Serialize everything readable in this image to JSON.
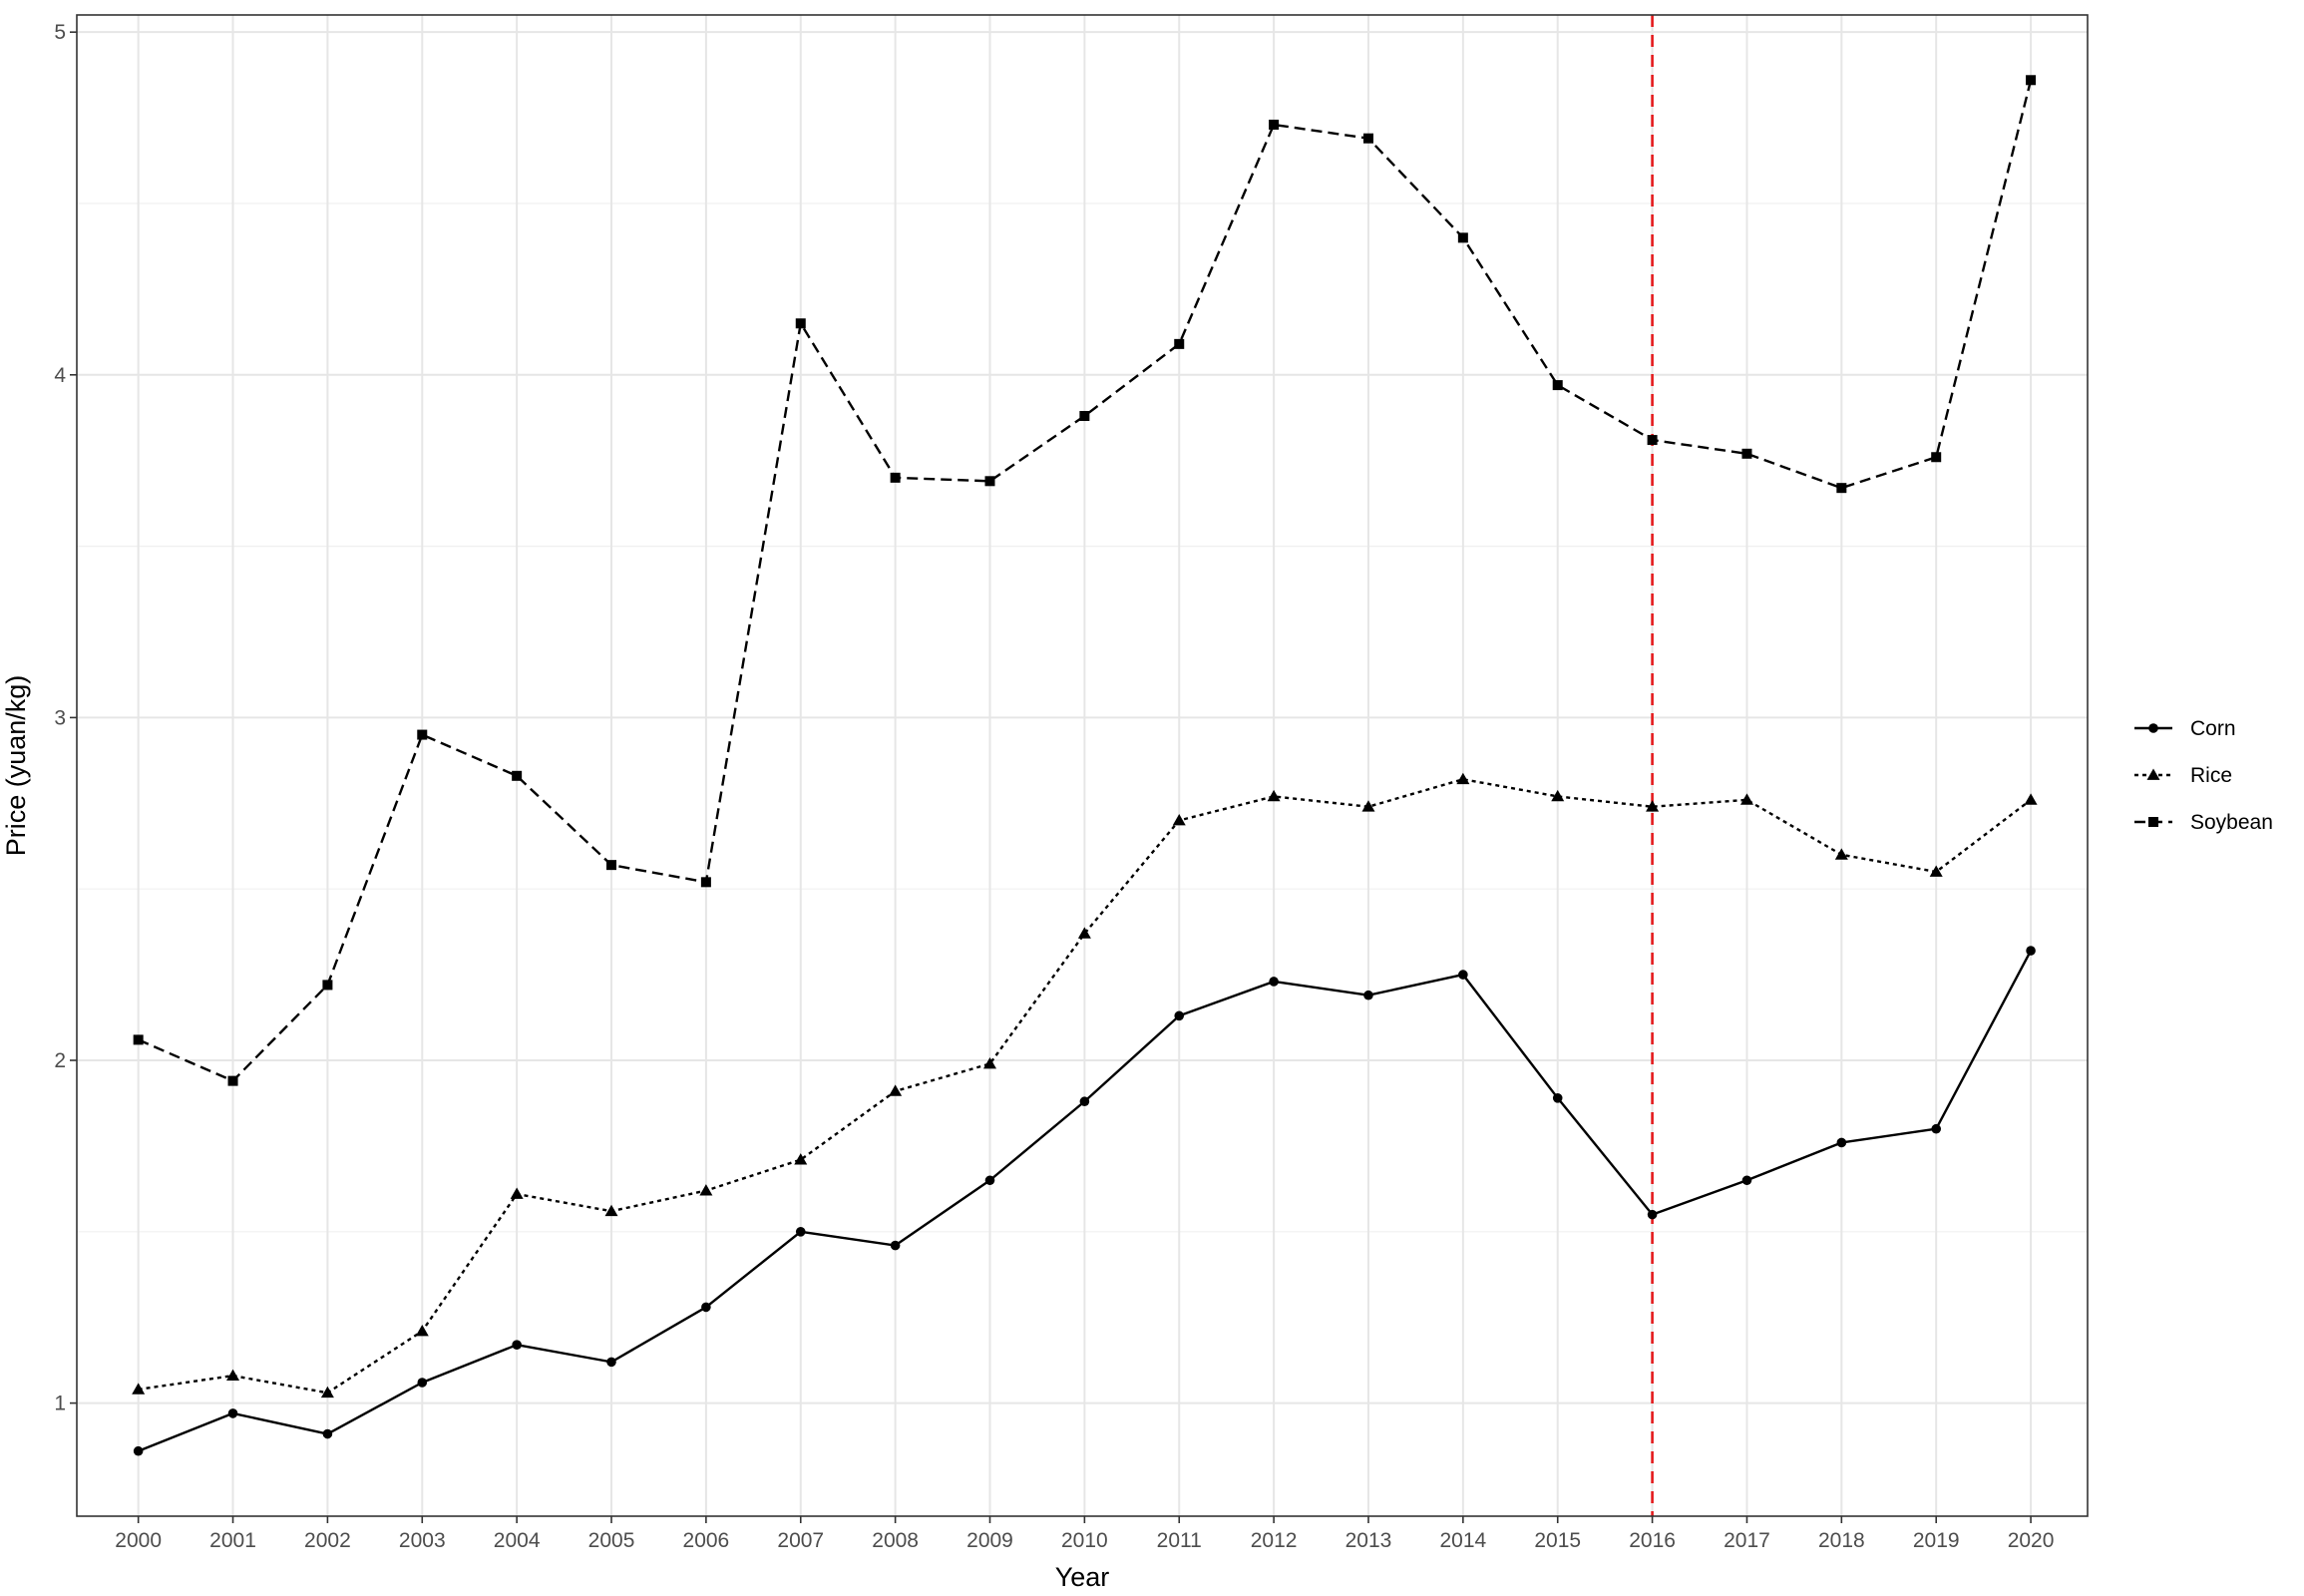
{
  "chart_data": {
    "type": "line",
    "title": "",
    "xlabel": "Year",
    "ylabel": "Price (yuan/kg)",
    "x": [
      2000,
      2001,
      2002,
      2003,
      2004,
      2005,
      2006,
      2007,
      2008,
      2009,
      2010,
      2011,
      2012,
      2013,
      2014,
      2015,
      2016,
      2017,
      2018,
      2019,
      2020
    ],
    "x_tick_labels": [
      "2000",
      "2001",
      "2002",
      "2003",
      "2004",
      "2005",
      "2006",
      "2007",
      "2008",
      "2009",
      "2010",
      "2011",
      "2012",
      "2013",
      "2014",
      "2015",
      "2016",
      "2017",
      "2018",
      "2019",
      "2020"
    ],
    "xlim": [
      1999.35,
      2020.6
    ],
    "ylim": [
      0.67,
      5.05
    ],
    "y_ticks": [
      1,
      2,
      3,
      4,
      5
    ],
    "y_tick_labels": [
      "1",
      "2",
      "3",
      "4",
      "5"
    ],
    "grid": true,
    "legend_position": "right",
    "series": [
      {
        "name": "Corn",
        "line_style": "solid",
        "marker": "circle",
        "color": "#000000",
        "values": [
          0.86,
          0.97,
          0.91,
          1.06,
          1.17,
          1.12,
          1.28,
          1.5,
          1.46,
          1.65,
          1.88,
          2.13,
          2.23,
          2.19,
          2.25,
          1.89,
          1.55,
          1.65,
          1.76,
          1.8,
          2.32
        ]
      },
      {
        "name": "Rice",
        "line_style": "dotted",
        "marker": "triangle",
        "color": "#000000",
        "values": [
          1.04,
          1.08,
          1.03,
          1.21,
          1.61,
          1.56,
          1.62,
          1.71,
          1.91,
          1.99,
          2.37,
          2.7,
          2.77,
          2.74,
          2.82,
          2.77,
          2.74,
          2.76,
          2.6,
          2.55,
          2.76
        ]
      },
      {
        "name": "Soybean",
        "line_style": "dashed",
        "marker": "square",
        "color": "#000000",
        "values": [
          2.06,
          1.94,
          2.22,
          2.95,
          2.83,
          2.57,
          2.52,
          4.15,
          3.7,
          3.69,
          3.88,
          4.09,
          4.73,
          4.69,
          4.4,
          3.97,
          3.81,
          3.77,
          3.67,
          3.76,
          4.86
        ]
      }
    ],
    "annotations": [
      {
        "type": "vline",
        "x": 2016,
        "color": "#e41a1c",
        "line_style": "dashed"
      }
    ]
  }
}
